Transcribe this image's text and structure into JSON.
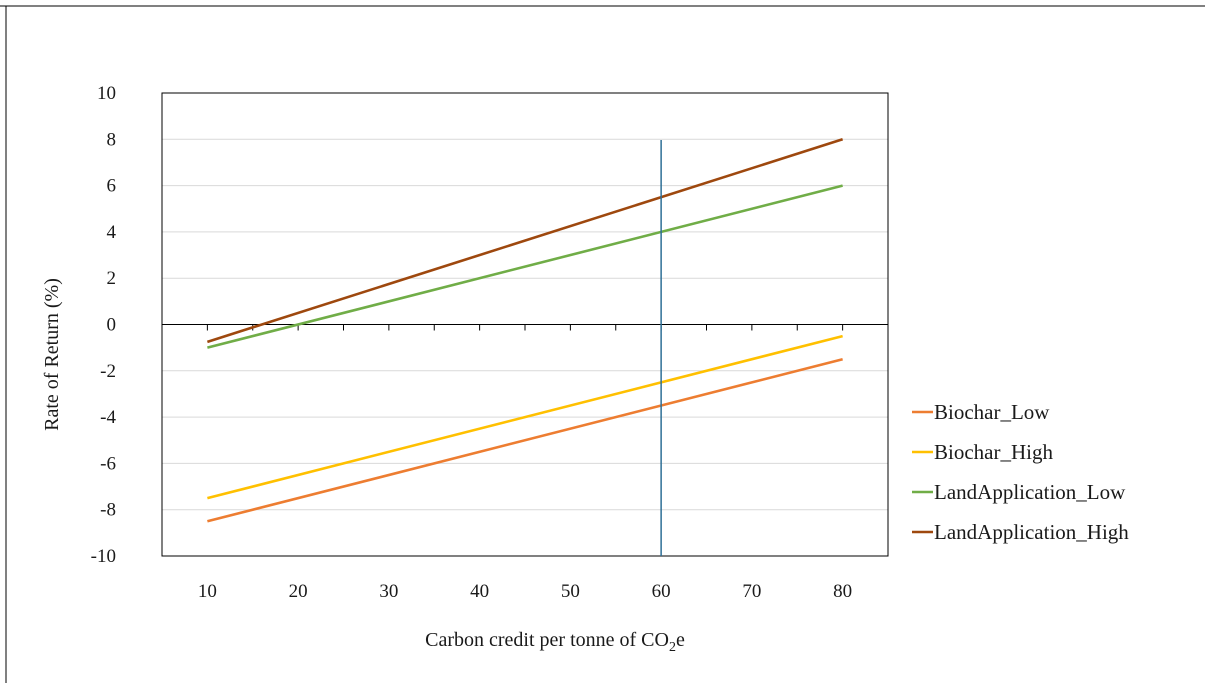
{
  "chart_data": {
    "type": "line",
    "title": "",
    "xlabel_main": "Carbon credit per tonne of CO",
    "xlabel_sub": "2",
    "xlabel_tail": "e",
    "ylabel": "Rate of Return  (%)",
    "x": [
      10,
      80
    ],
    "xticks": [
      "10",
      "20",
      "30",
      "40",
      "50",
      "60",
      "70",
      "80"
    ],
    "xlim": [
      5,
      85
    ],
    "ylim": [
      -10,
      10
    ],
    "yticks": [
      "10",
      "8",
      "6",
      "4",
      "2",
      "0",
      "-2",
      "-4",
      "-6",
      "-8",
      "-10"
    ],
    "grid": true,
    "legend_position": "right",
    "reference_line_x": 60,
    "reference_line_color": "#2e6f96",
    "series": [
      {
        "name": "Biochar_Low",
        "color": "#ed7d31",
        "x": [
          10,
          80
        ],
        "values": [
          -8.5,
          -1.5
        ]
      },
      {
        "name": "Biochar_High",
        "color": "#ffc000",
        "x": [
          10,
          80
        ],
        "values": [
          -7.5,
          -0.5
        ]
      },
      {
        "name": "LandApplication_Low",
        "color": "#70ad47",
        "x": [
          10,
          80
        ],
        "values": [
          -1.0,
          6.0
        ]
      },
      {
        "name": "LandApplication_High",
        "color": "#9e480e",
        "x": [
          10,
          80
        ],
        "values": [
          -0.75,
          8.0
        ]
      }
    ]
  }
}
